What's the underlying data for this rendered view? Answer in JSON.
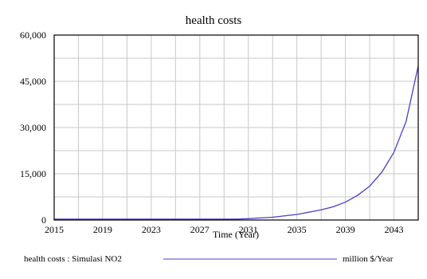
{
  "chart_data": {
    "type": "line",
    "title": "health costs",
    "xlabel": "Time (Year)",
    "ylabel": "",
    "xlim": [
      2015,
      2045
    ],
    "ylim": [
      0,
      60000
    ],
    "x_ticks": [
      2015,
      2019,
      2023,
      2027,
      2031,
      2035,
      2039,
      2043
    ],
    "y_ticks": [
      0,
      15000,
      30000,
      45000,
      60000
    ],
    "y_tick_labels": [
      "0",
      "15,000",
      "30,000",
      "45,000",
      "60,000"
    ],
    "grid": true,
    "series": [
      {
        "name": "health costs : Simulasi NO2",
        "unit": "million $/Year",
        "color": "#4a3fc9",
        "x": [
          2015,
          2019,
          2023,
          2027,
          2030,
          2031,
          2033,
          2035,
          2037,
          2038,
          2039,
          2040,
          2041,
          2042,
          2043,
          2044,
          2045
        ],
        "values": [
          300,
          300,
          300,
          300,
          300,
          450,
          900,
          1800,
          3300,
          4300,
          5800,
          8000,
          11000,
          15500,
          22000,
          32000,
          50000
        ]
      }
    ],
    "legend_position": "bottom"
  }
}
